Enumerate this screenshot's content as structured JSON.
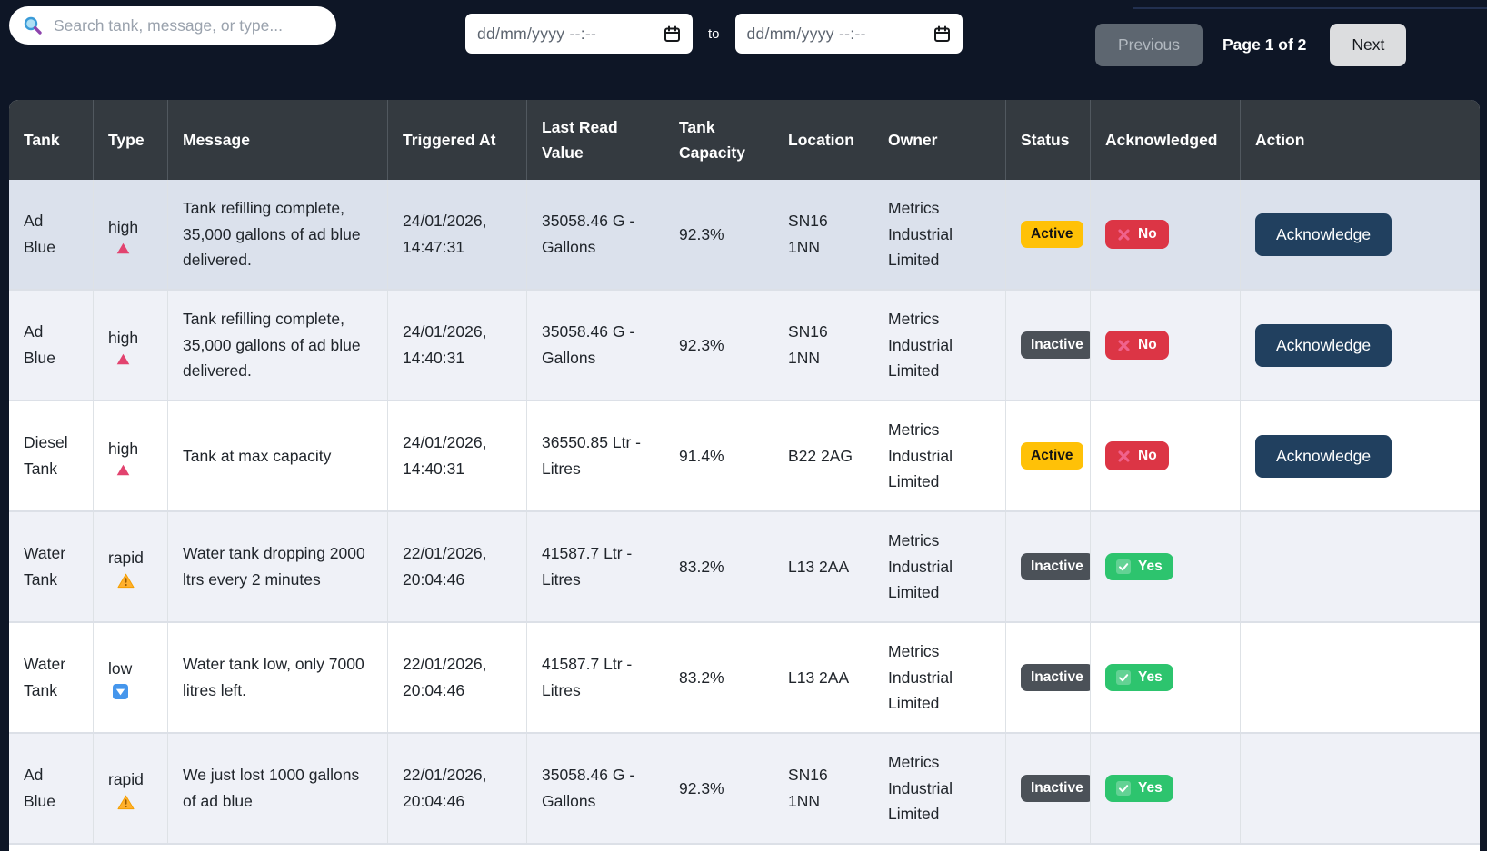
{
  "topbar": {
    "search": {
      "placeholder": "Search tank, message, or type...",
      "icon": "search-icon"
    },
    "date_from": {
      "placeholder": "dd/mm/yyyy --:--",
      "icon": "calendar-icon"
    },
    "to_label": "to",
    "date_to": {
      "placeholder": "dd/mm/yyyy --:--",
      "icon": "calendar-icon"
    },
    "pagination": {
      "previous_label": "Previous",
      "page_label": "Page 1 of 2",
      "next_label": "Next"
    }
  },
  "table": {
    "columns": [
      "Tank",
      "Type",
      "Message",
      "Triggered At",
      "Last Read Value",
      "Tank Capacity",
      "Location",
      "Owner",
      "Status",
      "Acknowledged",
      "Action"
    ],
    "rows": [
      {
        "tank": "Ad Blue",
        "type": "high",
        "type_icon": "triangle-up-icon",
        "message": "Tank refilling complete, 35,000 gallons of ad blue delivered.",
        "triggered_at": "24/01/2026, 14:47:31",
        "last_read_value": "35058.46 G - Gallons",
        "tank_capacity": "92.3%",
        "location": "SN16 1NN",
        "owner": "Metrics Industrial Limited",
        "status": "Active",
        "acknowledged": "No",
        "action": "Acknowledge"
      },
      {
        "tank": "Ad Blue",
        "type": "high",
        "type_icon": "triangle-up-icon",
        "message": "Tank refilling complete, 35,000 gallons of ad blue delivered.",
        "triggered_at": "24/01/2026, 14:40:31",
        "last_read_value": "35058.46 G - Gallons",
        "tank_capacity": "92.3%",
        "location": "SN16 1NN",
        "owner": "Metrics Industrial Limited",
        "status": "Inactive",
        "acknowledged": "No",
        "action": "Acknowledge"
      },
      {
        "tank": "Diesel Tank",
        "type": "high",
        "type_icon": "triangle-up-icon",
        "message": "Tank at max capacity",
        "triggered_at": "24/01/2026, 14:40:31",
        "last_read_value": "36550.85 Ltr - Litres",
        "tank_capacity": "91.4%",
        "location": "B22 2AG",
        "owner": "Metrics Industrial Limited",
        "status": "Active",
        "acknowledged": "No",
        "action": "Acknowledge"
      },
      {
        "tank": "Water Tank",
        "type": "rapid",
        "type_icon": "warning-icon",
        "message": "Water tank dropping 2000 ltrs every 2 minutes",
        "triggered_at": "22/01/2026, 20:04:46",
        "last_read_value": "41587.7 Ltr - Litres",
        "tank_capacity": "83.2%",
        "location": "L13 2AA",
        "owner": "Metrics Industrial Limited",
        "status": "Inactive",
        "acknowledged": "Yes",
        "action": ""
      },
      {
        "tank": "Water Tank",
        "type": "low",
        "type_icon": "down-arrow-icon",
        "message": "Water tank low, only 7000 litres left.",
        "triggered_at": "22/01/2026, 20:04:46",
        "last_read_value": "41587.7 Ltr - Litres",
        "tank_capacity": "83.2%",
        "location": "L13 2AA",
        "owner": "Metrics Industrial Limited",
        "status": "Inactive",
        "acknowledged": "Yes",
        "action": ""
      },
      {
        "tank": "Ad Blue",
        "type": "rapid",
        "type_icon": "warning-icon",
        "message": "We just lost 1000 gallons of ad blue",
        "triggered_at": "22/01/2026, 20:04:46",
        "last_read_value": "35058.46 G - Gallons",
        "tank_capacity": "92.3%",
        "location": "SN16 1NN",
        "owner": "Metrics Industrial Limited",
        "status": "Inactive",
        "acknowledged": "Yes",
        "action": ""
      }
    ]
  },
  "colors": {
    "page_background": "#0e1626",
    "header_background": "#343a40",
    "status_active": "#ffc107",
    "status_inactive": "#4b5158",
    "acknowledged_no": "#dc3545",
    "acknowledged_yes": "#2dc46e",
    "acknowledge_button": "#21405f",
    "row_highlight": "#dbe1ec",
    "row_stripe": "#eff1f7"
  }
}
